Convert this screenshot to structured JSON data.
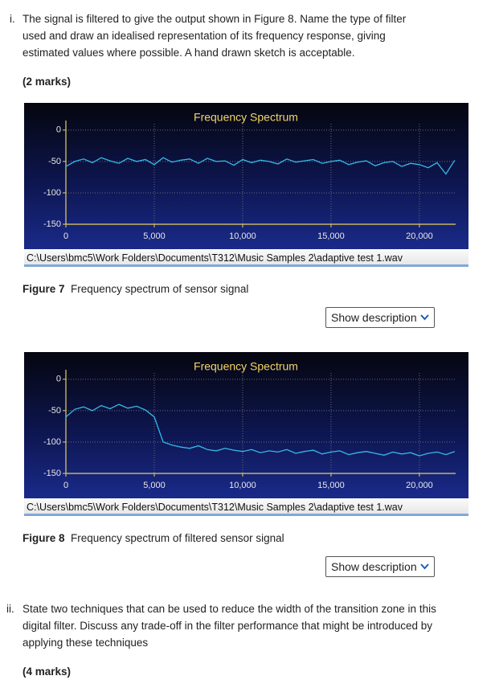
{
  "question_i": {
    "label": "i.",
    "text": "The signal is filtered to give the output shown in Figure 8. Name the type of filter used and draw an idealised representation of its frequency response, giving estimated values where possible. A hand drawn sketch is acceptable."
  },
  "marks_i": "(2 marks)",
  "figures": [
    {
      "status_path": "C:\\Users\\bmc5\\Work Folders\\Documents\\T312\\Music Samples 2\\adaptive test 1.wav",
      "caption_label": "Figure 7",
      "caption_text": "Frequency spectrum of sensor signal",
      "button": "Show description"
    },
    {
      "status_path": "C:\\Users\\bmc5\\Work Folders\\Documents\\T312\\Music Samples 2\\adaptive test 1.wav",
      "caption_label": "Figure 8",
      "caption_text": "Frequency spectrum of filtered sensor signal",
      "button": "Show description"
    }
  ],
  "question_ii": {
    "label": "ii.",
    "text": "State two techniques that can be used to reduce the width of the transition zone in this digital filter. Discuss any trade-off in the filter performance that might be introduced by applying these techniques"
  },
  "marks_ii": "(4 marks)",
  "chart_data": [
    {
      "type": "line",
      "title": "Frequency Spectrum",
      "color": "#35b9e8",
      "grid": true,
      "x": [
        0,
        500,
        1000,
        1500,
        2000,
        2500,
        3000,
        3500,
        4000,
        4500,
        5000,
        5500,
        6000,
        6500,
        7000,
        7500,
        8000,
        8500,
        9000,
        9500,
        10000,
        10500,
        11000,
        11500,
        12000,
        12500,
        13000,
        13500,
        14000,
        14500,
        15000,
        15500,
        16000,
        16500,
        17000,
        17500,
        18000,
        18500,
        19000,
        19500,
        20000,
        20500,
        21000,
        21500,
        22000
      ],
      "values": [
        -58,
        -50,
        -46,
        -52,
        -44,
        -49,
        -53,
        -45,
        -50,
        -47,
        -55,
        -44,
        -51,
        -48,
        -46,
        -53,
        -45,
        -50,
        -49,
        -56,
        -47,
        -52,
        -48,
        -50,
        -54,
        -46,
        -51,
        -49,
        -47,
        -53,
        -50,
        -48,
        -55,
        -51,
        -49,
        -57,
        -52,
        -50,
        -58,
        -53,
        -55,
        -60,
        -52,
        -70,
        -48
      ],
      "xlim": [
        0,
        22050
      ],
      "ylim": [
        -150,
        10
      ],
      "xticks": [
        0,
        {
          "value": 5000,
          "label": "5,000"
        },
        {
          "value": 10000,
          "label": "10,000"
        },
        {
          "value": 15000,
          "label": "15,000"
        },
        {
          "value": 20000,
          "label": "20,000"
        }
      ],
      "yticks": [
        0,
        -50,
        -100,
        -150
      ]
    },
    {
      "type": "line",
      "title": "Frequency Spectrum",
      "color": "#35b9e8",
      "grid": true,
      "x": [
        0,
        500,
        1000,
        1500,
        2000,
        2500,
        3000,
        3500,
        4000,
        4500,
        5000,
        5500,
        6000,
        6500,
        7000,
        7500,
        8000,
        8500,
        9000,
        9500,
        10000,
        10500,
        11000,
        11500,
        12000,
        12500,
        13000,
        13500,
        14000,
        14500,
        15000,
        15500,
        16000,
        16500,
        17000,
        17500,
        18000,
        18500,
        19000,
        19500,
        20000,
        20500,
        21000,
        21500,
        22000
      ],
      "values": [
        -60,
        -48,
        -44,
        -50,
        -42,
        -47,
        -40,
        -46,
        -43,
        -49,
        -60,
        -100,
        -105,
        -108,
        -110,
        -106,
        -112,
        -114,
        -110,
        -113,
        -115,
        -112,
        -117,
        -114,
        -116,
        -112,
        -118,
        -115,
        -113,
        -119,
        -116,
        -114,
        -120,
        -117,
        -115,
        -118,
        -121,
        -116,
        -119,
        -117,
        -122,
        -118,
        -116,
        -120,
        -115
      ],
      "xlim": [
        0,
        22050
      ],
      "ylim": [
        -150,
        10
      ],
      "xticks": [
        0,
        {
          "value": 5000,
          "label": "5,000"
        },
        {
          "value": 10000,
          "label": "10,000"
        },
        {
          "value": 15000,
          "label": "15,000"
        },
        {
          "value": 20000,
          "label": "20,000"
        }
      ],
      "yticks": [
        0,
        -50,
        -100,
        -150
      ]
    }
  ]
}
